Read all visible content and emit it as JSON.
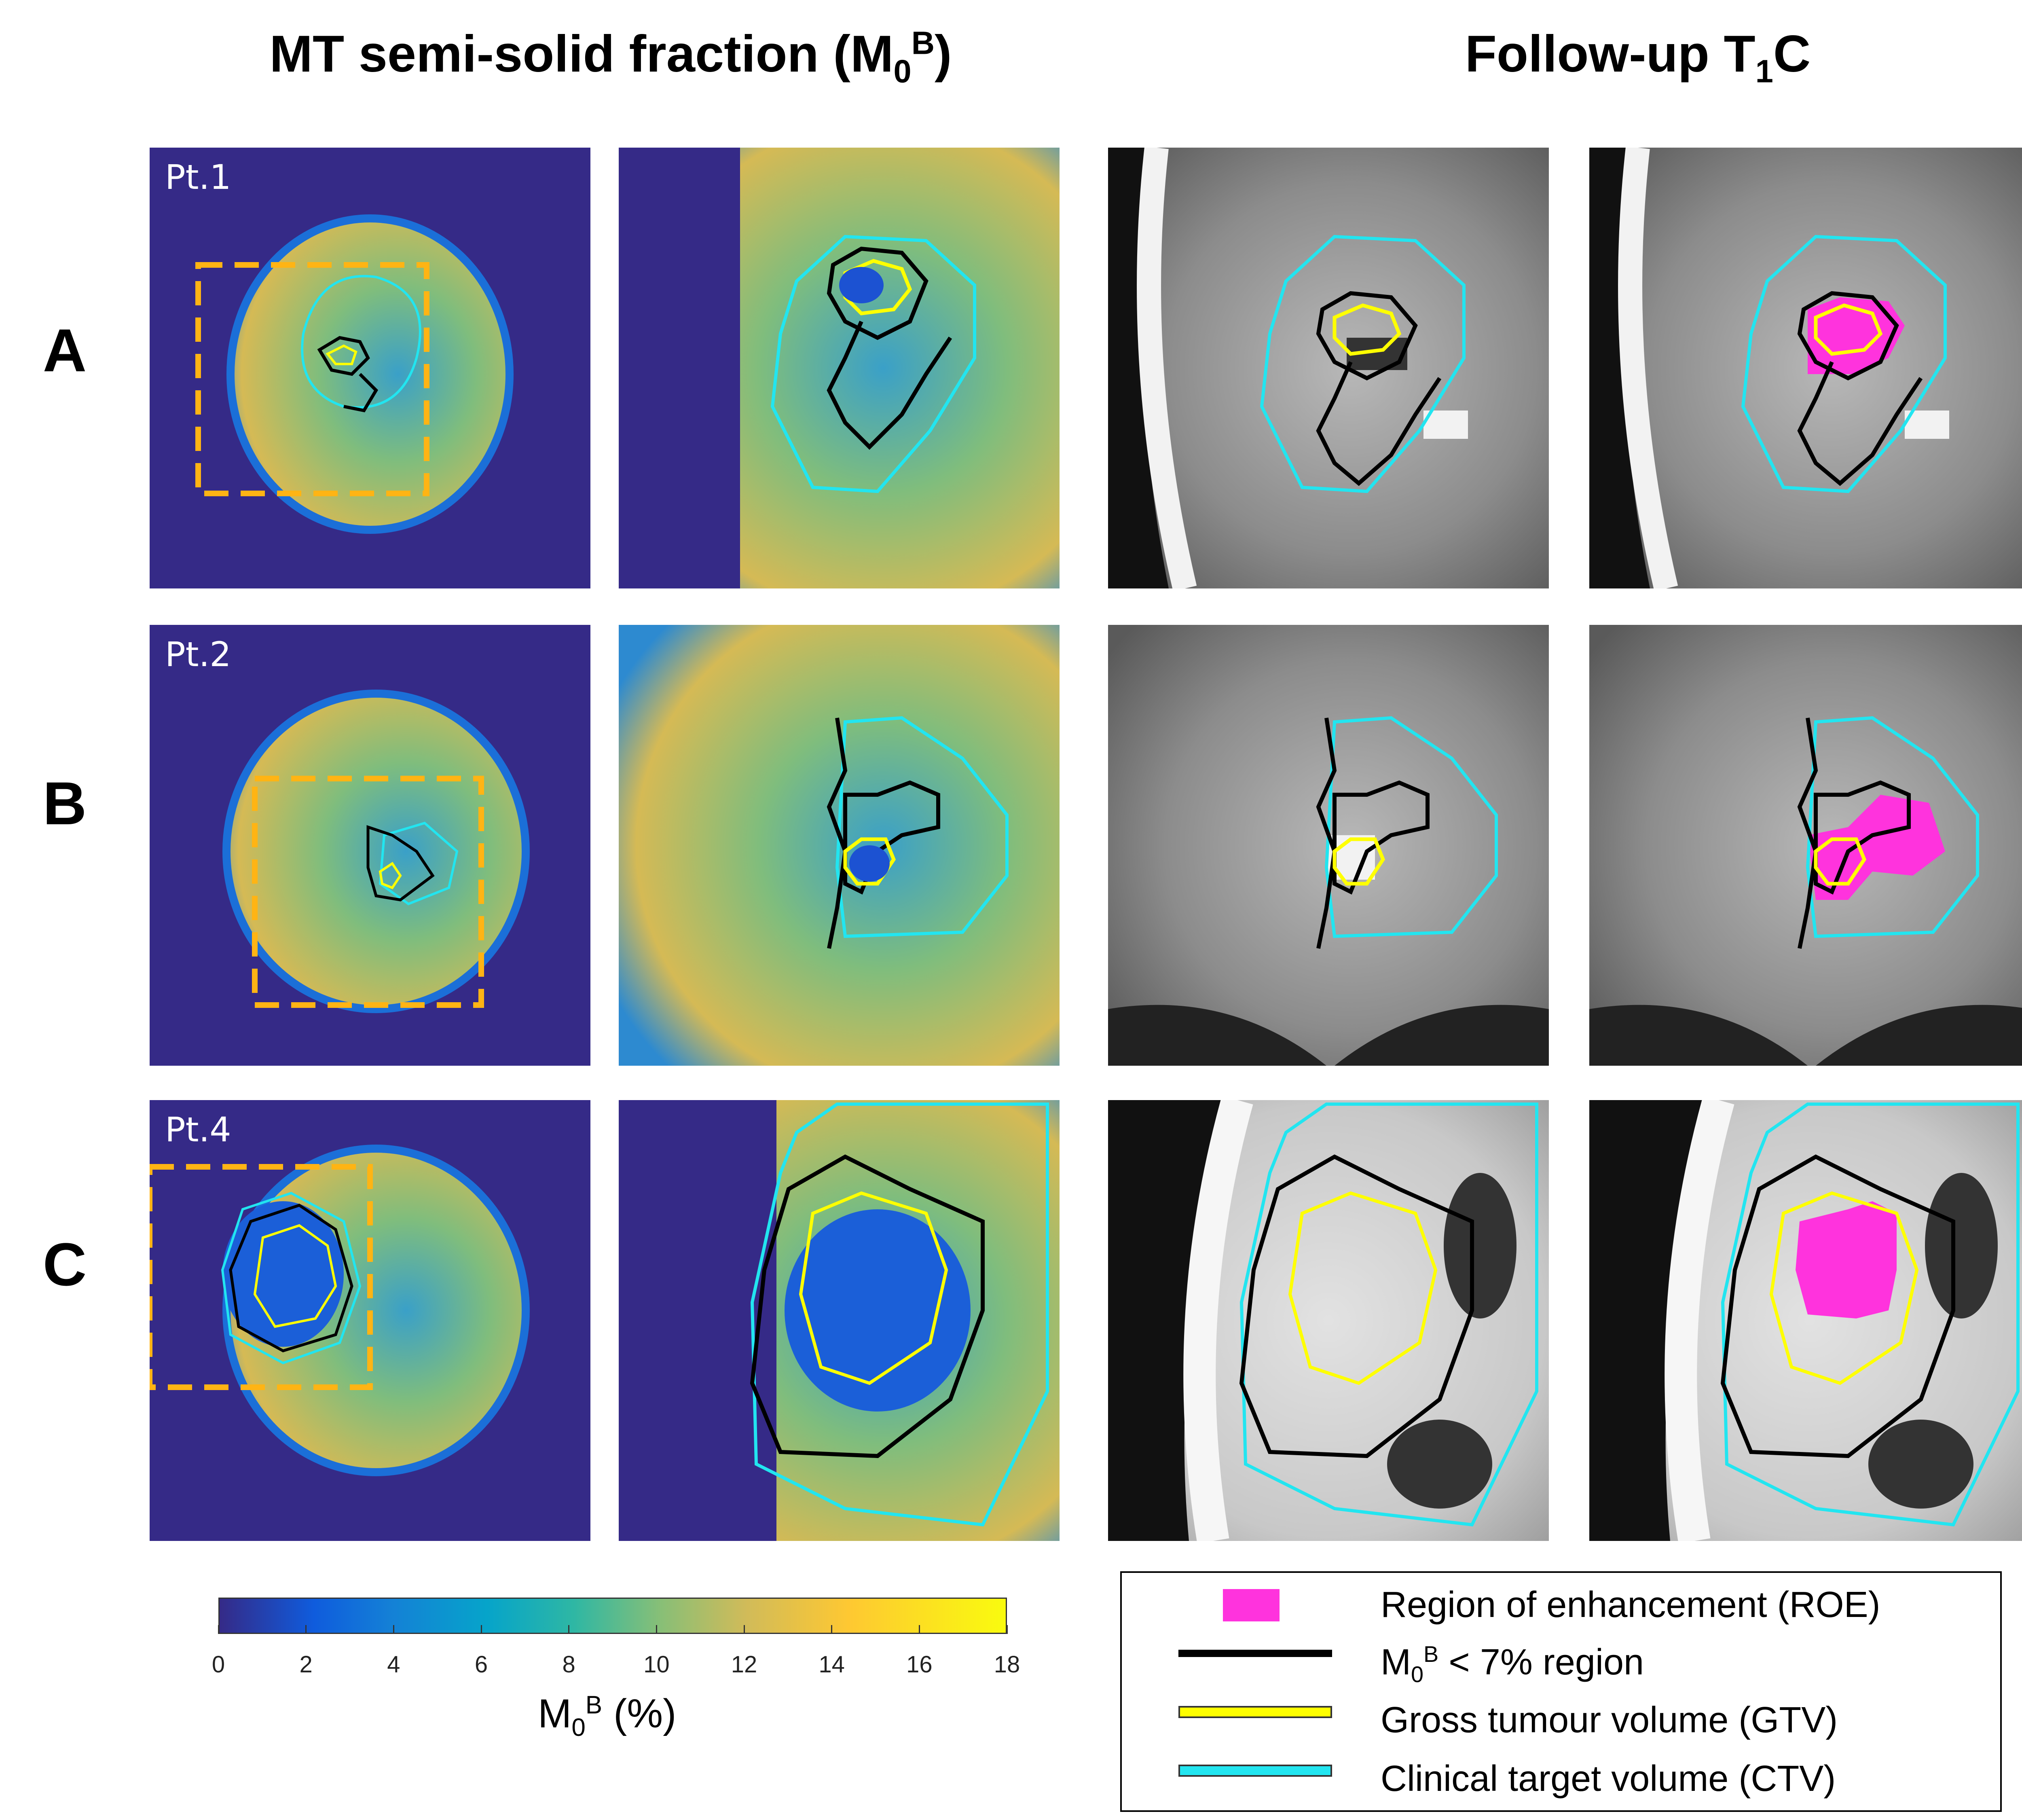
{
  "titles": {
    "left_prefix": "MT semi-solid fraction (M",
    "left_sub": "0",
    "left_sup": "B",
    "left_suffix": ")",
    "right_prefix": "Follow-up T",
    "right_sub": "1",
    "right_suffix": "C"
  },
  "rows": [
    {
      "letter": "A",
      "patient": "Pt.1"
    },
    {
      "letter": "B",
      "patient": "Pt.2"
    },
    {
      "letter": "C",
      "patient": "Pt.4"
    }
  ],
  "colorbar": {
    "min": 0,
    "max": 18,
    "ticks": [
      "0",
      "2",
      "4",
      "6",
      "8",
      "10",
      "12",
      "14",
      "16",
      "18"
    ],
    "label_prefix": "M",
    "label_sub": "0",
    "label_sup": "B",
    "label_suffix": " (%)",
    "colormap": "parula"
  },
  "legend": {
    "roe": "Region of enhancement (ROE)",
    "m0b_prefix": "M",
    "m0b_sub": "0",
    "m0b_sup": "B",
    "m0b_suffix": " < 7% region",
    "gtv": "Gross tumour volume (GTV)",
    "ctv": "Clinical target volume (CTV)"
  },
  "colors": {
    "roe": "#ff33dd",
    "m0b_region": "#000000",
    "gtv": "#ffff00",
    "ctv": "#22e5f0",
    "crop_box": "#ffb414",
    "map_background": "#352a87"
  }
}
